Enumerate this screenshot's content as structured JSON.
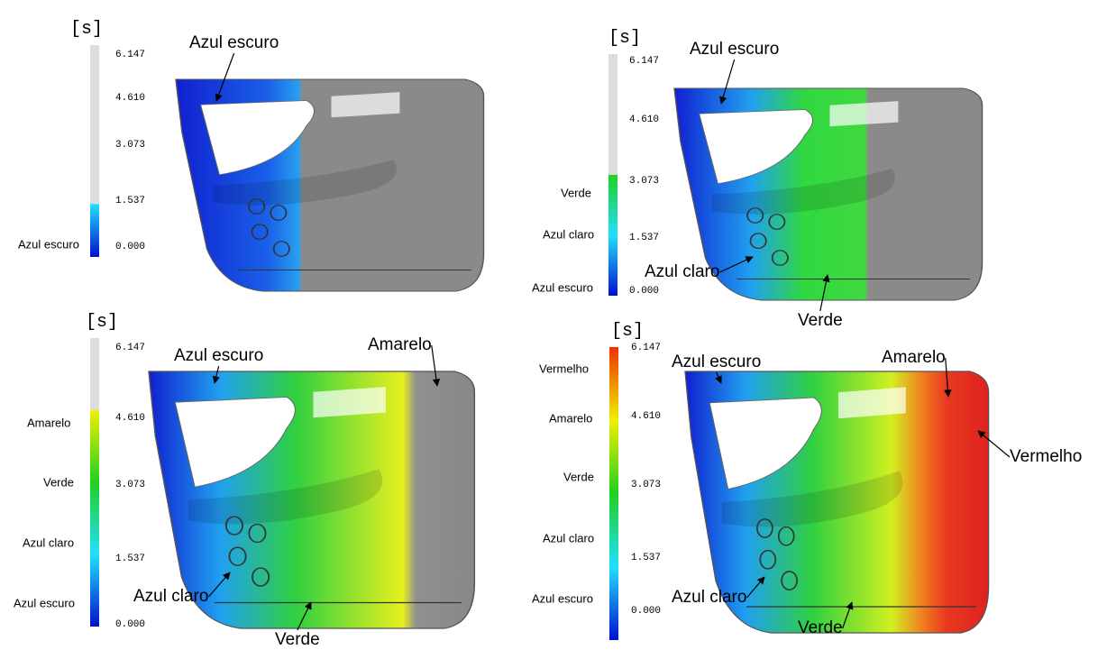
{
  "panels": [
    {
      "unit": "[s]",
      "scale_ticks": [
        "6.147",
        "4.610",
        "3.073",
        "1.537",
        "0.000"
      ],
      "legend_labels": [
        "Azul escuro"
      ],
      "annotations": [
        "Azul escuro"
      ]
    },
    {
      "unit": "[s]",
      "scale_ticks": [
        "6.147",
        "4.610",
        "3.073",
        "1.537",
        "0.000"
      ],
      "legend_labels": [
        "Verde",
        "Azul claro",
        "Azul escuro"
      ],
      "annotations": [
        "Azul escuro",
        "Azul claro",
        "Verde"
      ]
    },
    {
      "unit": "[s]",
      "scale_ticks": [
        "6.147",
        "4.610",
        "3.073",
        "1.537",
        "0.000"
      ],
      "legend_labels": [
        "Amarelo",
        "Verde",
        "Azul claro",
        "Azul escuro"
      ],
      "annotations": [
        "Azul escuro",
        "Amarelo",
        "Azul claro",
        "Verde"
      ]
    },
    {
      "unit": "[s]",
      "scale_ticks": [
        "6.147",
        "4.610",
        "3.073",
        "1.537",
        "0.000"
      ],
      "legend_labels": [
        "Vermelho",
        "Amarelo",
        "Verde",
        "Azul claro",
        "Azul escuro"
      ],
      "annotations": [
        "Azul escuro",
        "Amarelo",
        "Vermelho",
        "Azul claro",
        "Verde"
      ]
    }
  ]
}
